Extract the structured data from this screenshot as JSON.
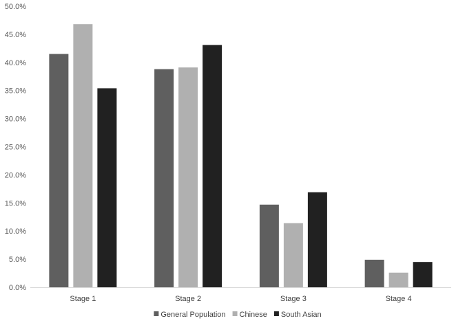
{
  "chart_data": {
    "type": "bar",
    "categories": [
      "Stage 1",
      "Stage 2",
      "Stage 3",
      "Stage 4"
    ],
    "series": [
      {
        "name": "General Population",
        "color": "#5f5f5f",
        "values": [
          41.5,
          38.8,
          14.7,
          4.9
        ]
      },
      {
        "name": "Chinese",
        "color": "#b0b0b0",
        "values": [
          46.8,
          39.1,
          11.4,
          2.6
        ]
      },
      {
        "name": "South Asian",
        "color": "#212121",
        "values": [
          35.4,
          43.1,
          16.9,
          4.5
        ]
      }
    ],
    "ylim": [
      0,
      50
    ],
    "yticks": [
      0,
      5,
      10,
      15,
      20,
      25,
      30,
      35,
      40,
      45,
      50
    ],
    "ytick_labels": [
      "0.0%",
      "5.0%",
      "10.0%",
      "15.0%",
      "20.0%",
      "25.0%",
      "30.0%",
      "35.0%",
      "40.0%",
      "45.0%",
      "50.0%"
    ],
    "title": "",
    "xlabel": "",
    "ylabel": "",
    "grid": false,
    "legend_position": "bottom"
  }
}
